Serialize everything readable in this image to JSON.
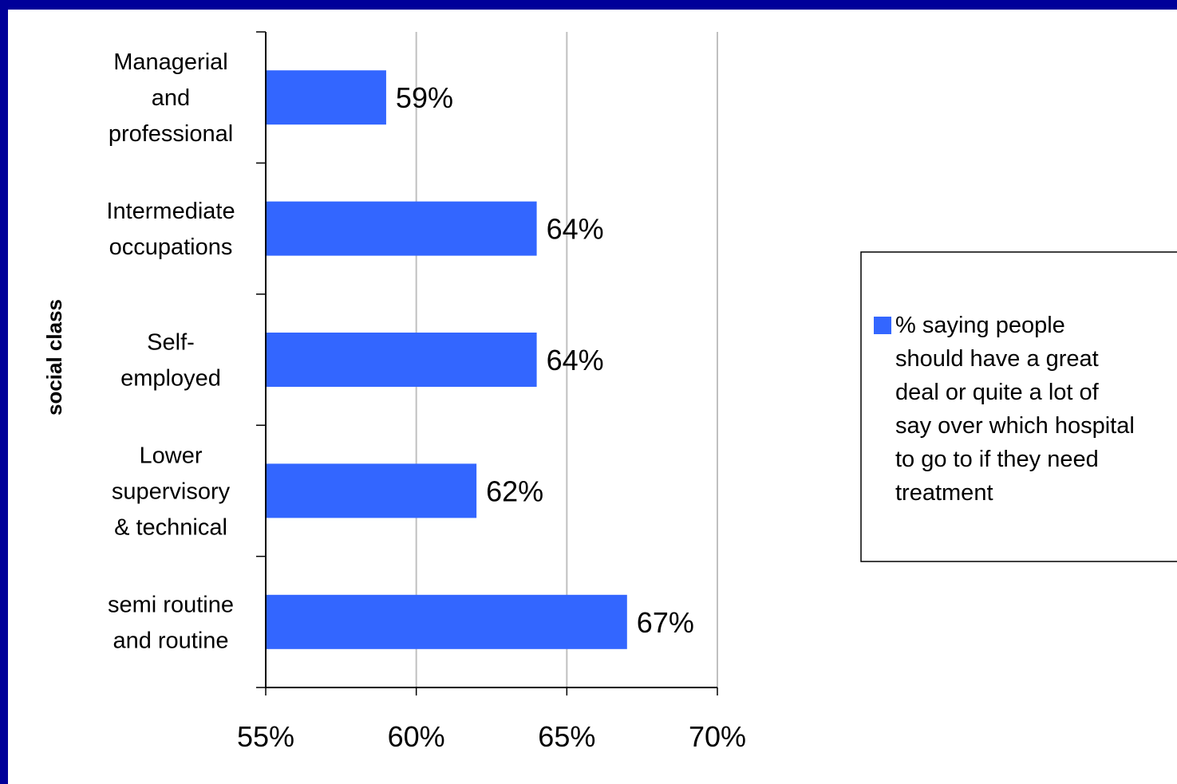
{
  "chart_data": {
    "type": "bar",
    "orientation": "horizontal",
    "categories": [
      [
        "Managerial",
        "and",
        "professional"
      ],
      [
        "Intermediate",
        "occupations"
      ],
      [
        "Self-",
        "employed"
      ],
      [
        "Lower",
        "supervisory",
        "& technical"
      ],
      [
        "semi routine",
        "and routine"
      ]
    ],
    "series": [
      {
        "name": [
          "% saying people",
          "should have a great",
          "deal or quite a lot of",
          "say over which hospital",
          "to go to if they need",
          "treatment"
        ],
        "values": [
          59,
          64,
          64,
          62,
          67
        ],
        "data_labels": [
          "59%",
          "64%",
          "64%",
          "62%",
          "67%"
        ],
        "color": "#3366ff"
      }
    ],
    "ylabel": "social class",
    "xlim": [
      55,
      70
    ],
    "xticks": [
      55,
      60,
      65,
      70
    ],
    "xtick_labels": [
      "55%",
      "60%",
      "65%",
      "70%"
    ],
    "grid": "vertical",
    "legend_position": "right"
  },
  "colors": {
    "background": "#ffffff",
    "frame": "#000099",
    "bar": "#3366ff",
    "gridline": "#c0c0c0"
  }
}
